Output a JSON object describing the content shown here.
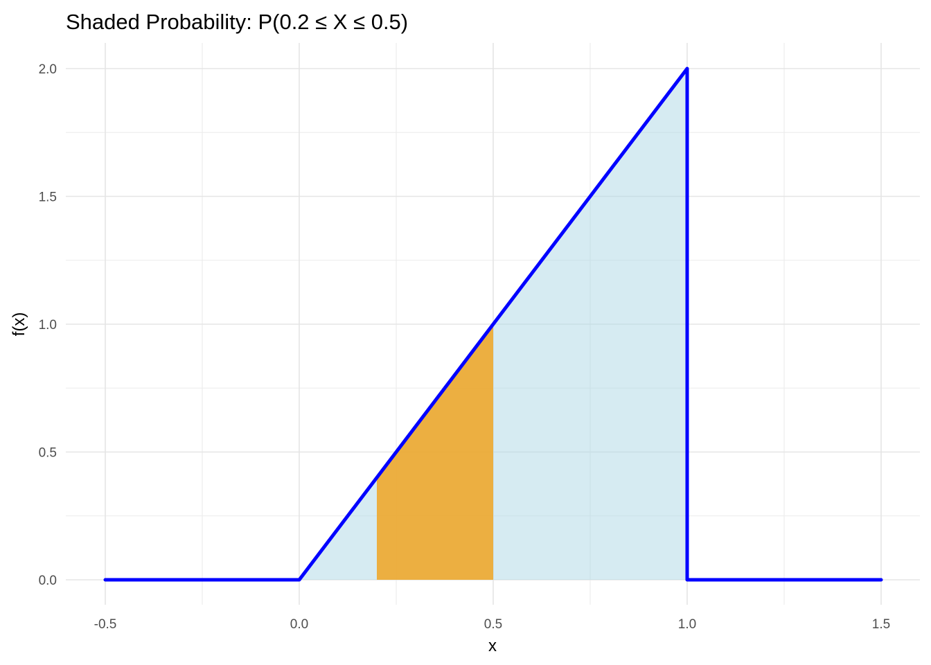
{
  "chart_data": {
    "type": "area",
    "title": "Shaded Probability: P(0.2 ≤ X ≤ 0.5)",
    "xlabel": "x",
    "ylabel": "f(x)",
    "xlim": [
      -0.5,
      1.5
    ],
    "ylim": [
      0,
      2
    ],
    "x_ticks": [
      -0.5,
      0,
      0.5,
      1,
      1.5
    ],
    "x_tick_labels": [
      "-0.5",
      "0.0",
      "0.5",
      "1.0",
      "1.5"
    ],
    "y_ticks": [
      0,
      0.5,
      1,
      1.5,
      2
    ],
    "y_tick_labels": [
      "0.0",
      "0.5",
      "1.0",
      "1.5",
      "2.0"
    ],
    "grid": true,
    "series": [
      {
        "role": "density-curve",
        "color": "#0000ff",
        "points": [
          [
            -0.5,
            0
          ],
          [
            0,
            0
          ],
          [
            1,
            2
          ],
          [
            1,
            0
          ],
          [
            1.5,
            0
          ]
        ]
      },
      {
        "role": "full-area",
        "color": "#add8e6",
        "points": [
          [
            0,
            0
          ],
          [
            1,
            2
          ],
          [
            1,
            0
          ]
        ]
      },
      {
        "role": "shaded-interval",
        "color": "#f0a522",
        "x_from": 0.2,
        "x_to": 0.5,
        "points": [
          [
            0.2,
            0
          ],
          [
            0.2,
            0.4
          ],
          [
            0.5,
            1.0
          ],
          [
            0.5,
            0
          ]
        ]
      }
    ]
  }
}
